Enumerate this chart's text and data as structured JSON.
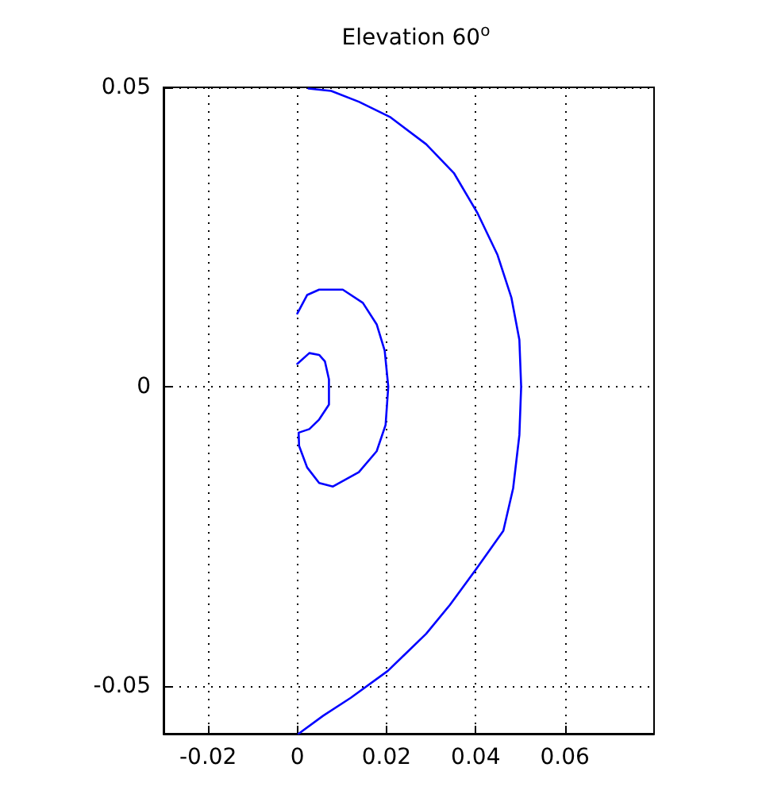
{
  "chart_data": {
    "type": "line",
    "title": "Elevation 60$^{o}$",
    "series": [
      {
        "color": "#0000ff",
        "x": [
          0.0025,
          0.0076,
          0.0138,
          0.0209,
          0.0289,
          0.0351,
          0.0404,
          0.0449,
          0.048,
          0.0498,
          0.0502,
          0.0498,
          0.0484,
          0.0462,
          0.0403,
          0.0342,
          0.0289,
          0.0203,
          0.012,
          0.0058,
          0.0003
        ],
        "values": [
          0.0498,
          0.0494,
          0.0476,
          0.045,
          0.0405,
          0.0357,
          0.029,
          0.022,
          0.0149,
          0.0078,
          0,
          -0.0081,
          -0.017,
          -0.0241,
          -0.0303,
          -0.0365,
          -0.0413,
          -0.0475,
          -0.052,
          -0.055,
          -0.058
        ]
      },
      {
        "color": "#0000ff",
        "x": [
          0,
          0.0022,
          0.0049,
          0.0102,
          0.0147,
          0.0178,
          0.0196,
          0.0204,
          0.0198,
          0.0178,
          0.0138,
          0.008,
          0.0049,
          0.0022,
          0.0004,
          0.0003,
          0.0027,
          0.0049,
          0.0071,
          0.0071,
          0.0062,
          0.0049,
          0.0027,
          0
        ],
        "values": [
          0.0122,
          0.0153,
          0.0162,
          0.0162,
          0.014,
          0.0104,
          0.006,
          0,
          -0.0064,
          -0.0108,
          -0.0143,
          -0.0167,
          -0.0161,
          -0.0135,
          -0.0099,
          -0.0077,
          -0.0071,
          -0.0055,
          -0.003,
          0.0012,
          0.0042,
          0.0053,
          0.0056,
          0.0038
        ]
      }
    ],
    "xlim": [
      -0.03,
      0.08
    ],
    "xticks": [
      -0.02,
      0,
      0.02,
      0.04,
      0.06
    ],
    "ylim": [
      -0.058,
      0.05
    ],
    "yticks": [
      -0.05,
      0,
      0.05
    ],
    "grid": true,
    "marker": "none",
    "line_style": "solid"
  }
}
